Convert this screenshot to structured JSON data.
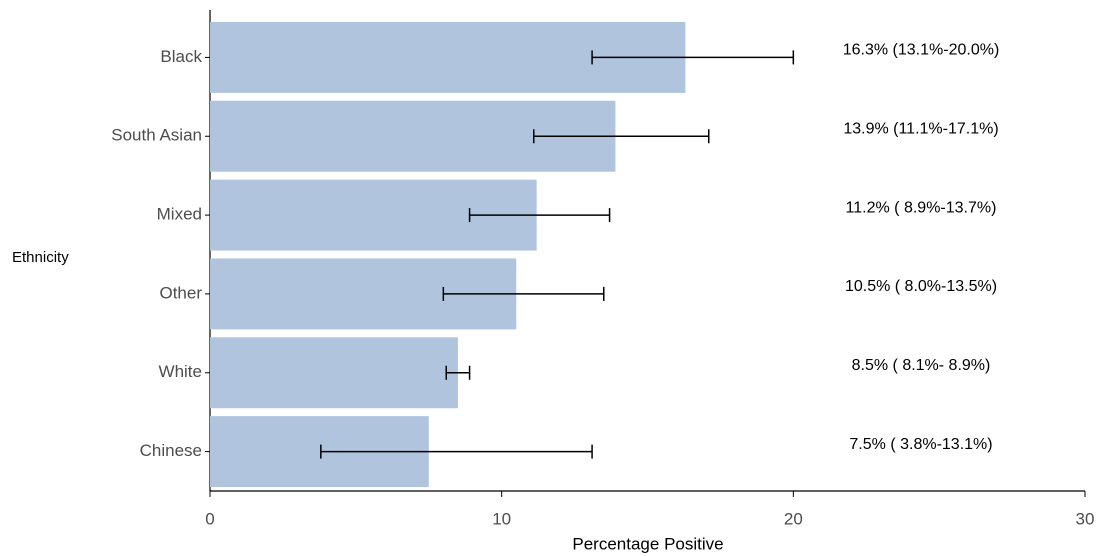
{
  "chart_data": {
    "type": "bar",
    "orientation": "horizontal",
    "x_label": "Percentage Positive",
    "y_label": "Ethnicity",
    "categories": [
      "Black",
      "South Asian",
      "Mixed",
      "Other",
      "White",
      "Chinese"
    ],
    "values": [
      16.3,
      13.9,
      11.2,
      10.5,
      8.5,
      7.5
    ],
    "lower": [
      13.1,
      11.1,
      8.9,
      8.0,
      8.1,
      3.8
    ],
    "upper": [
      20.0,
      17.1,
      13.7,
      13.5,
      8.9,
      13.1
    ],
    "value_labels": [
      "16.3% (13.1%-20.0%)",
      "13.9% (11.1%-17.1%)",
      "11.2% ( 8.9%-13.7%)",
      "10.5% ( 8.0%-13.5%)",
      "8.5% ( 8.1%- 8.9%)",
      "7.5% ( 3.8%-13.1%)"
    ],
    "color": "#b0c4de",
    "error_color": "#000000",
    "xlim": [
      0,
      30
    ],
    "xticks": [
      0,
      10,
      20,
      30
    ],
    "grid": false
  }
}
